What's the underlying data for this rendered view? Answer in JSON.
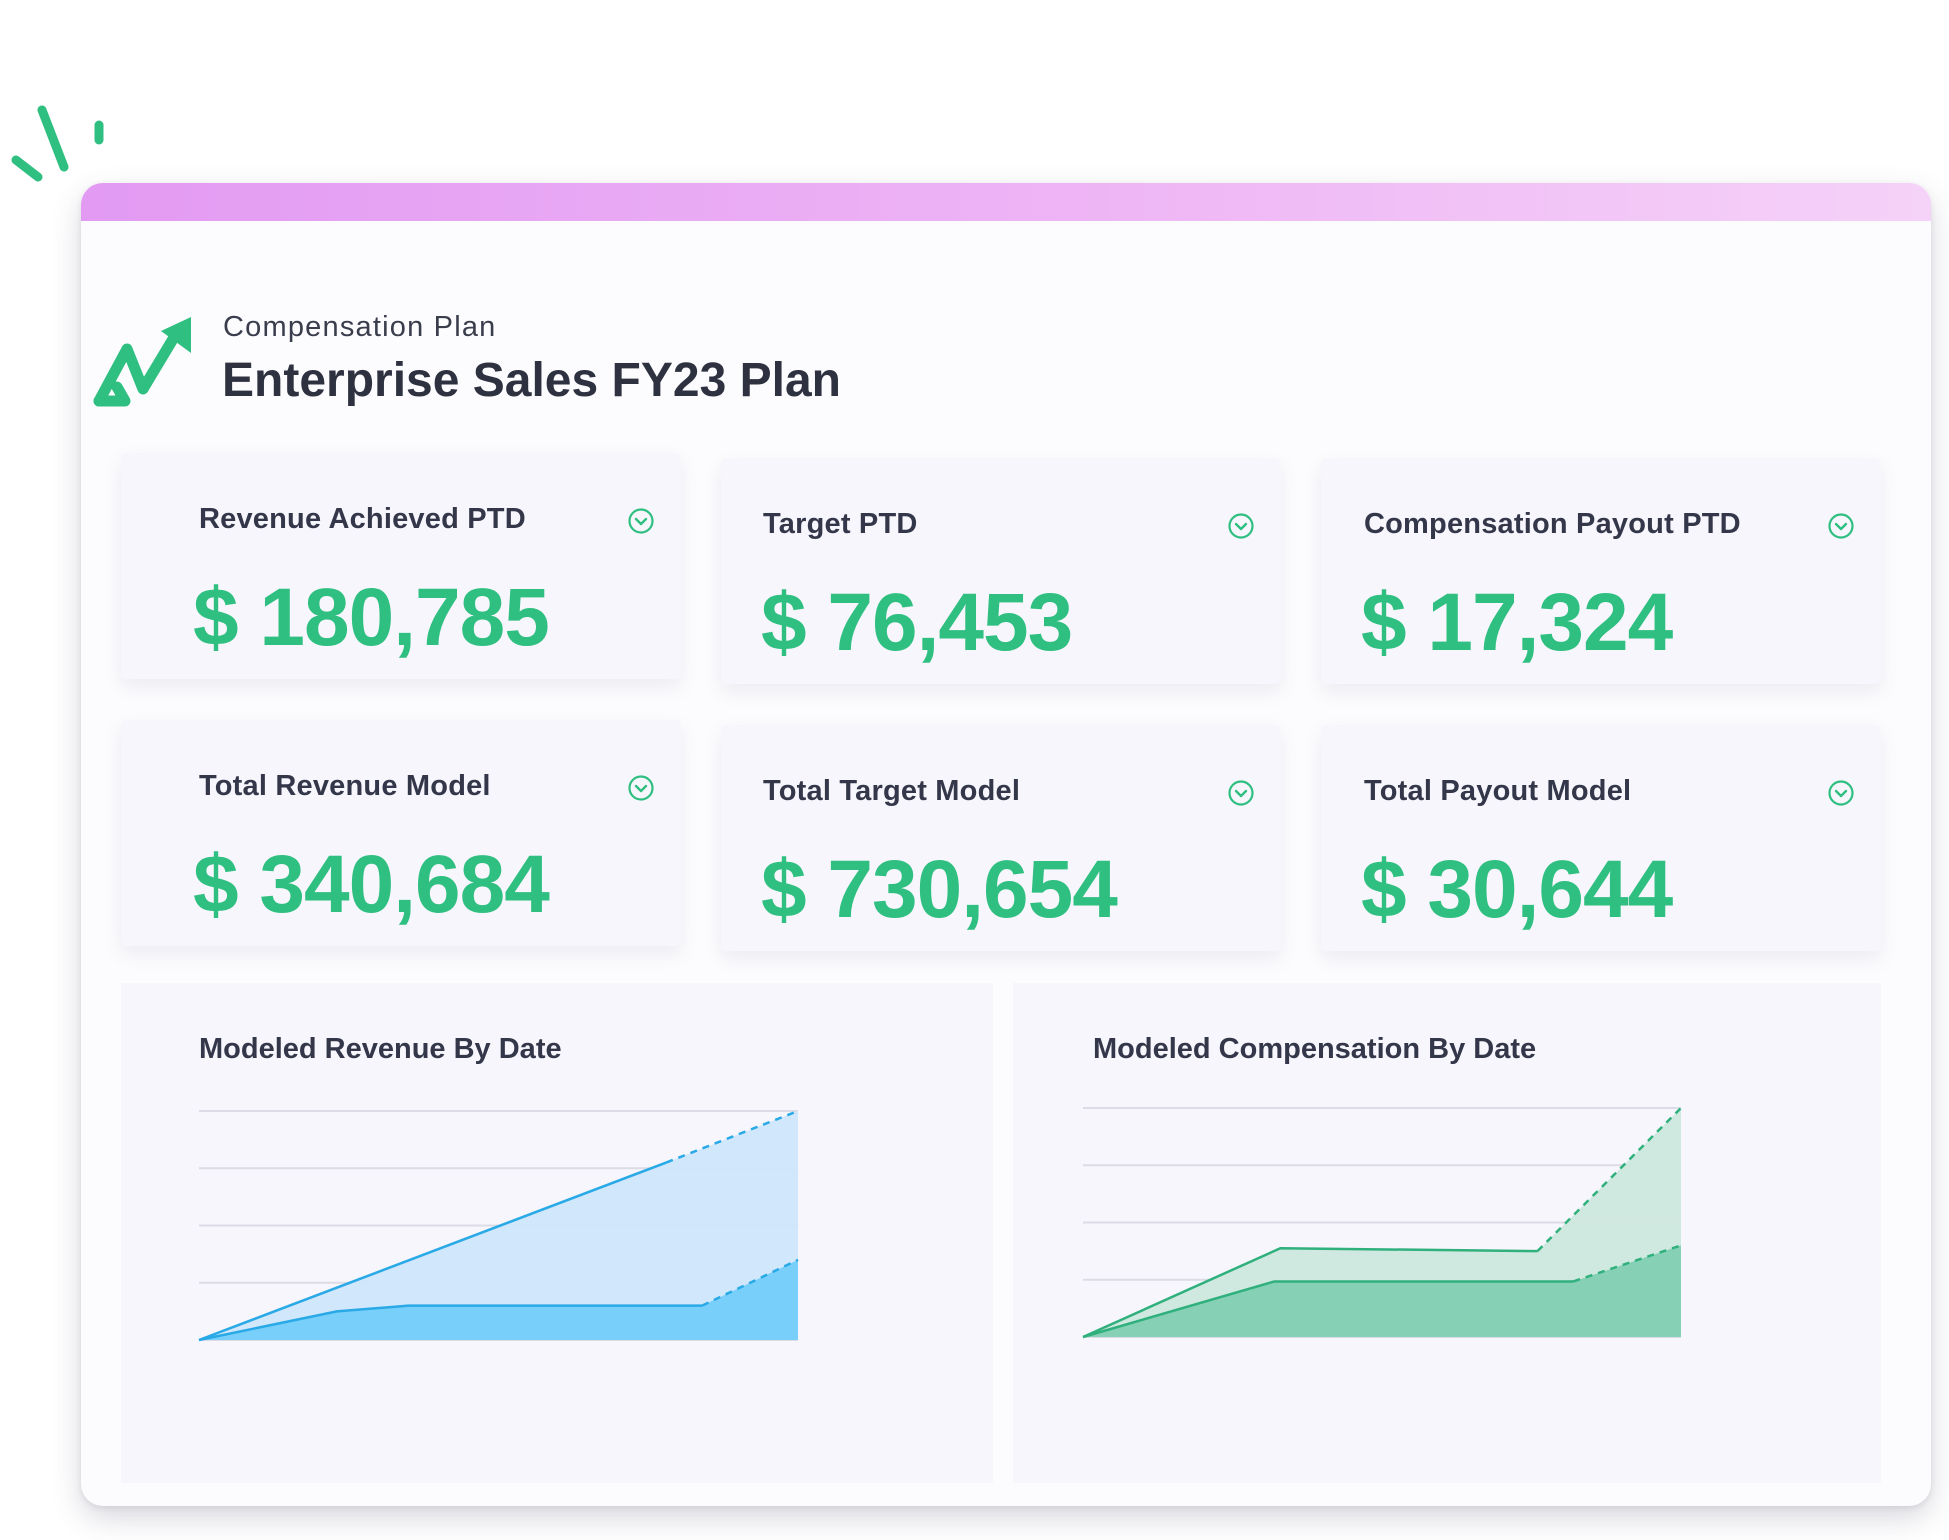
{
  "header": {
    "plan_label": "Compensation Plan",
    "plan_title": "Enterprise Sales FY23 Plan"
  },
  "metrics": [
    {
      "label": "Revenue Achieved PTD",
      "value": "$ 180,785",
      "icon": "chevron-down-circle-icon"
    },
    {
      "label": "Target PTD",
      "value": "$ 76,453",
      "icon": "chevron-down-circle-icon"
    },
    {
      "label": "Compensation Payout PTD",
      "value": "$ 17,324",
      "icon": "chevron-down-circle-icon"
    },
    {
      "label": "Total Revenue Model",
      "value": "$ 340,684",
      "icon": "chevron-down-circle-icon"
    },
    {
      "label": "Total Target Model",
      "value": "$ 730,654",
      "icon": "chevron-down-circle-icon"
    },
    {
      "label": "Total Payout Model",
      "value": "$ 30,644",
      "icon": "chevron-down-circle-icon"
    }
  ],
  "colors": {
    "accent_green": "#2fbf80",
    "revenue_line": "#29a9e6",
    "revenue_fill_light": "#cfe6fb",
    "revenue_fill_dark": "#73cdfa",
    "comp_line": "#2fb07c",
    "comp_fill_light": "#cde8de",
    "comp_fill_dark": "#82d0b3",
    "topbar_gradient": [
      "#e29af2",
      "#f5d2f8"
    ]
  },
  "chart_data": [
    {
      "type": "area",
      "title": "Modeled Revenue By Date",
      "xlabel": "",
      "ylabel": "",
      "grid": true,
      "ylim": [
        0,
        4
      ],
      "series": [
        {
          "style": "light",
          "x": [
            0,
            0.78,
            1
          ],
          "y": [
            0,
            3.1,
            4
          ],
          "projected_from_index": 1
        },
        {
          "style": "dark",
          "x": [
            0,
            0.23,
            0.35,
            0.84,
            1
          ],
          "y": [
            0,
            0.5,
            0.6,
            0.6,
            1.4
          ],
          "projected_from_index": 3
        }
      ]
    },
    {
      "type": "area",
      "title": "Modeled Compensation By Date",
      "xlabel": "",
      "ylabel": "",
      "grid": true,
      "ylim": [
        0,
        4
      ],
      "series": [
        {
          "style": "light",
          "x": [
            0,
            0.33,
            0.76,
            1
          ],
          "y": [
            0,
            1.55,
            1.5,
            4
          ],
          "projected_from_index": 2
        },
        {
          "style": "dark",
          "x": [
            0,
            0.32,
            0.82,
            1
          ],
          "y": [
            0,
            0.97,
            0.97,
            1.6
          ],
          "projected_from_index": 2
        }
      ]
    }
  ]
}
